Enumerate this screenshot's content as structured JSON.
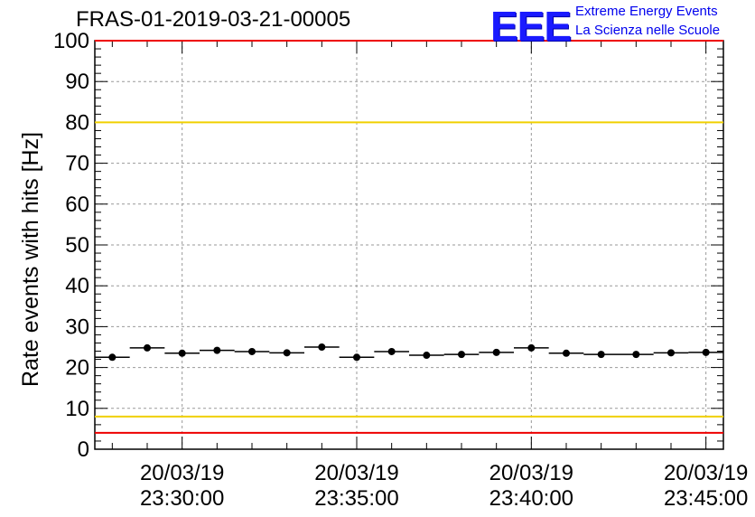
{
  "chart_data": {
    "type": "scatter",
    "title": "FRAS-01-2019-03-21-00005",
    "ylabel": "Rate events with hits [Hz]",
    "xlabel": "",
    "ylim": [
      0,
      100
    ],
    "yticks": [
      0,
      10,
      20,
      30,
      40,
      50,
      60,
      70,
      80,
      90,
      100
    ],
    "xlim_minutes": [
      -2.5,
      15.5
    ],
    "xtick_values_minutes": [
      0,
      5,
      10,
      15
    ],
    "xtick_labels": [
      {
        "date": "20/03/19",
        "time": "23:30:00"
      },
      {
        "date": "20/03/19",
        "time": "23:35:00"
      },
      {
        "date": "20/03/19",
        "time": "23:40:00"
      },
      {
        "date": "20/03/19",
        "time": "23:45:00"
      }
    ],
    "bin_width_minutes": 1,
    "grid": true,
    "series": [
      {
        "name": "rate",
        "x_minutes": [
          -2,
          -1,
          0,
          1,
          2,
          3,
          4,
          5,
          6,
          7,
          8,
          9,
          10,
          11,
          12,
          13,
          14,
          15
        ],
        "values": [
          22.5,
          24.8,
          23.5,
          24.2,
          23.9,
          23.6,
          25.0,
          22.5,
          23.9,
          23.0,
          23.2,
          23.7,
          24.8,
          23.5,
          23.2,
          23.2,
          23.6,
          23.7
        ]
      }
    ],
    "reference_lines": [
      {
        "name": "upper-red-limit",
        "y": 100,
        "color": "#ee0000"
      },
      {
        "name": "upper-yellow-limit",
        "y": 80,
        "color": "#f0d000"
      },
      {
        "name": "lower-yellow-limit",
        "y": 8,
        "color": "#f0d000"
      },
      {
        "name": "lower-red-limit",
        "y": 4,
        "color": "#ee0000"
      }
    ]
  },
  "logo": {
    "mark": "EEE",
    "line1": "Extreme Energy Events",
    "line2": "La Scienza nelle Scuole",
    "color": "#1a1aff"
  }
}
